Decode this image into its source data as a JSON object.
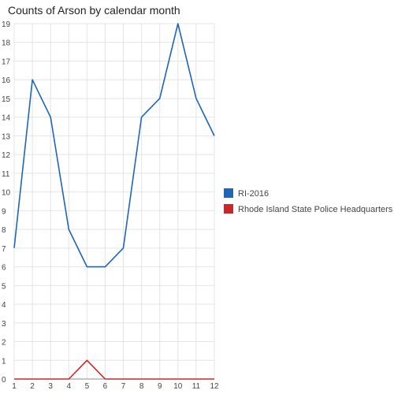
{
  "chart_data": {
    "type": "line",
    "title": "Counts of Arson by calendar month",
    "xlabel": "",
    "ylabel": "",
    "x": [
      1,
      2,
      3,
      4,
      5,
      6,
      7,
      8,
      9,
      10,
      11,
      12
    ],
    "ylim": [
      0,
      19
    ],
    "yticks": [
      0,
      1,
      2,
      3,
      4,
      5,
      6,
      7,
      8,
      9,
      10,
      11,
      12,
      13,
      14,
      15,
      16,
      17,
      18,
      19
    ],
    "grid": true,
    "legend_position": "right",
    "series": [
      {
        "name": "RI-2016",
        "color": "#1f66b8",
        "values": [
          7,
          16,
          14,
          8,
          6,
          6,
          7,
          14,
          15,
          19,
          15,
          13
        ]
      },
      {
        "name": "Rhode Island State Police Headquarters",
        "color": "#c8282a",
        "values": [
          0,
          0,
          0,
          0,
          1,
          0,
          0,
          0,
          0,
          0,
          0,
          0
        ]
      }
    ]
  }
}
